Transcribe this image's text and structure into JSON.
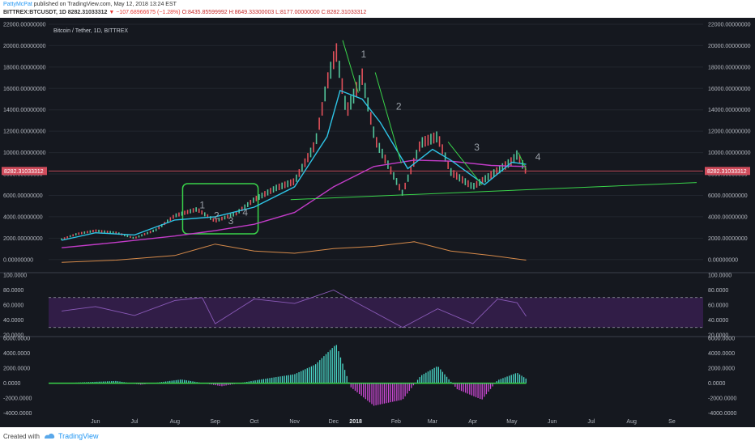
{
  "header": {
    "user": "PattyMcPat",
    "published_text": "published on TradingView.com, May 12, 2018 13:24 EST",
    "symbol_line": "BITTREX:BTCUSDT, 1D 8282.31033312",
    "change": "▼ −107.68966675 (−1.28%)",
    "ohlc": "O:8435.85599992 H:8649.33300003 L:8177.00000000 C:8282.31033312"
  },
  "footer": {
    "created_with": "Created with",
    "brand": "TradingView"
  },
  "chart_data": {
    "type": "line",
    "title": "Bitcoin / Tether, 1D, BITTREX",
    "last_price_label": "8282.31033312",
    "x_months": [
      "Jun",
      "Jul",
      "Aug",
      "Sep",
      "Oct",
      "Nov",
      "Dec",
      "2018",
      "Feb",
      "Mar",
      "Apr",
      "May",
      "Jun",
      "Jul",
      "Aug",
      "Se"
    ],
    "price_axis": {
      "ticks": [
        "22000.00000000",
        "20000.00000000",
        "18000.00000000",
        "16000.00000000",
        "14000.00000000",
        "12000.00000000",
        "10000.00000000",
        "8000.00000000",
        "6000.00000000",
        "4000.00000000",
        "2000.00000000",
        "0.00000000"
      ],
      "ylim": [
        -1000,
        22000
      ]
    },
    "rsi_axis": {
      "ticks": [
        "100.0000",
        "80.0000",
        "60.0000",
        "40.0000",
        "20.0000"
      ],
      "ylim": [
        20,
        100
      ],
      "bands": [
        70,
        30
      ]
    },
    "macd_axis": {
      "ticks": [
        "6000.0000",
        "4000.0000",
        "2000.0000",
        "0.0000",
        "-2000.0000",
        "-4000.0000"
      ],
      "ylim": [
        -5000,
        6000
      ]
    },
    "price_series": {
      "name": "BTCUSDT",
      "x": [
        "2017-05-20",
        "2017-06-01",
        "2017-06-15",
        "2017-07-01",
        "2017-07-15",
        "2017-08-01",
        "2017-08-15",
        "2017-09-01",
        "2017-09-15",
        "2017-10-01",
        "2017-10-15",
        "2017-11-01",
        "2017-11-15",
        "2017-12-01",
        "2017-12-10",
        "2017-12-17",
        "2017-12-25",
        "2018-01-06",
        "2018-01-16",
        "2018-02-06",
        "2018-02-20",
        "2018-03-05",
        "2018-03-15",
        "2018-04-01",
        "2018-04-15",
        "2018-05-01",
        "2018-05-05",
        "2018-05-12"
      ],
      "y": [
        1900,
        2400,
        2700,
        2500,
        2000,
        2800,
        4100,
        4700,
        3600,
        4300,
        5600,
        6700,
        7300,
        10800,
        16500,
        19500,
        13800,
        17100,
        11200,
        6200,
        10900,
        11500,
        8200,
        6800,
        7900,
        9200,
        9800,
        8282
      ]
    },
    "ema_series": {
      "name": "EMA",
      "x": [
        "2017-05-20",
        "2017-06-15",
        "2017-07-15",
        "2017-08-15",
        "2017-09-15",
        "2017-10-15",
        "2017-11-15",
        "2017-12-10",
        "2017-12-20",
        "2018-01-06",
        "2018-01-20",
        "2018-02-10",
        "2018-03-01",
        "2018-03-15",
        "2018-04-10",
        "2018-05-01",
        "2018-05-12"
      ],
      "y": [
        1800,
        2500,
        2300,
        3700,
        4000,
        4900,
        6800,
        11500,
        15800,
        15000,
        12800,
        8500,
        10300,
        9300,
        7000,
        9100,
        8900
      ]
    },
    "sma200_series": {
      "name": "MA",
      "x": [
        "2017-05-20",
        "2017-07-01",
        "2017-08-15",
        "2017-09-15",
        "2017-10-15",
        "2017-11-15",
        "2017-12-15",
        "2018-01-15",
        "2018-02-15",
        "2018-03-15",
        "2018-04-15",
        "2018-05-12"
      ],
      "y": [
        1100,
        1600,
        2200,
        2700,
        3300,
        4400,
        6800,
        8700,
        9300,
        9200,
        8800,
        8700
      ]
    },
    "trendline": {
      "x": [
        "2017-11-12",
        "2018-09-20"
      ],
      "y": [
        5600,
        7200
      ]
    },
    "downtrend_lines": [
      {
        "x": [
          "2017-12-22",
          "2018-01-03"
        ],
        "y": [
          20500,
          15600
        ]
      },
      {
        "x": [
          "2018-01-16",
          "2018-02-05"
        ],
        "y": [
          17500,
          9000
        ]
      },
      {
        "x": [
          "2018-03-13",
          "2018-04-08"
        ],
        "y": [
          11000,
          7000
        ]
      },
      {
        "x": [
          "2018-05-06",
          "2018-05-12"
        ],
        "y": [
          10000,
          8400
        ]
      }
    ],
    "annotations": [
      {
        "text": "1",
        "x": "2017-09-03",
        "y": 4800
      },
      {
        "text": "2",
        "x": "2017-09-14",
        "y": 3800
      },
      {
        "text": "3",
        "x": "2017-09-25",
        "y": 3300
      },
      {
        "text": "4",
        "x": "2017-10-06",
        "y": 4100
      },
      {
        "text": "1",
        "x": "2018-01-05",
        "y": 18900
      },
      {
        "text": "2",
        "x": "2018-02-01",
        "y": 14000
      },
      {
        "text": "3",
        "x": "2018-04-02",
        "y": 10200
      },
      {
        "text": "4",
        "x": "2018-05-19",
        "y": 9300
      }
    ],
    "consolidation_box": {
      "x": [
        "2017-08-21",
        "2017-10-18"
      ],
      "y": [
        2400,
        7100
      ]
    },
    "volume_series": {
      "x": [
        "2017-05-20",
        "2017-07-01",
        "2017-08-15",
        "2017-09-15",
        "2017-10-15",
        "2017-11-15",
        "2017-12-15",
        "2018-01-15",
        "2018-02-15",
        "2018-03-15",
        "2018-04-15",
        "2018-05-12"
      ],
      "y": [
        200,
        300,
        500,
        1000,
        700,
        600,
        800,
        900,
        1100,
        700,
        500,
        300
      ]
    },
    "rsi_series": {
      "x": [
        "2017-05-20",
        "2017-06-15",
        "2017-07-15",
        "2017-08-15",
        "2017-09-05",
        "2017-09-15",
        "2017-10-15",
        "2017-11-15",
        "2017-12-15",
        "2018-01-05",
        "2018-02-06",
        "2018-03-05",
        "2018-04-01",
        "2018-04-20",
        "2018-05-05",
        "2018-05-12"
      ],
      "y": [
        52,
        58,
        46,
        66,
        70,
        35,
        68,
        62,
        80,
        60,
        30,
        55,
        35,
        68,
        63,
        45
      ]
    },
    "macd_series": {
      "x": [
        "2017-05-20",
        "2017-07-01",
        "2017-07-20",
        "2017-08-20",
        "2017-09-20",
        "2017-10-20",
        "2017-11-15",
        "2017-12-01",
        "2017-12-17",
        "2017-12-28",
        "2018-01-15",
        "2018-02-06",
        "2018-02-20",
        "2018-03-05",
        "2018-03-20",
        "2018-04-08",
        "2018-04-20",
        "2018-05-05",
        "2018-05-12"
      ],
      "y": [
        0,
        300,
        -200,
        500,
        -400,
        500,
        1200,
        2500,
        5200,
        -500,
        -3000,
        -2200,
        1000,
        2300,
        -800,
        -2200,
        400,
        1400,
        600
      ]
    }
  }
}
